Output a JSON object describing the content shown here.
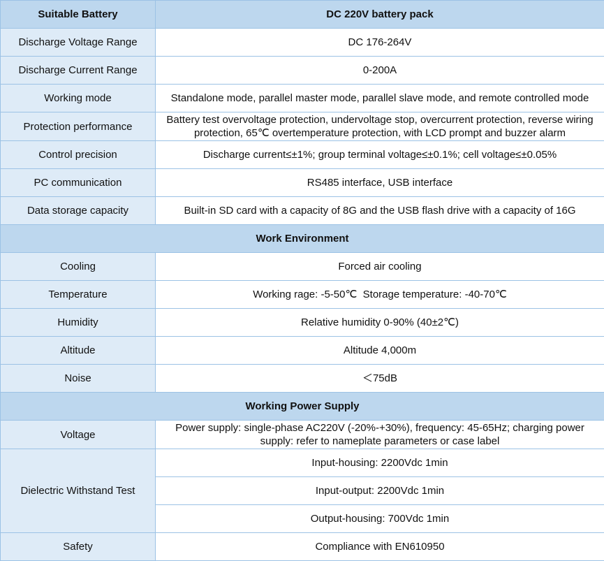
{
  "colors": {
    "section_bg": "#BDD7EE",
    "label_bg": "#DEEBF7",
    "value_bg": "#FFFFFF",
    "border": "#9CC2E5",
    "text": "#111111"
  },
  "header": {
    "label": "Suitable Battery",
    "value": "DC 220V battery pack"
  },
  "rows1": [
    {
      "label": "Discharge Voltage Range",
      "value": "DC 176-264V"
    },
    {
      "label": "Discharge Current Range",
      "value": "0-200A"
    },
    {
      "label": "Working mode",
      "value": "Standalone mode, parallel master mode, parallel slave mode, and remote controlled mode"
    },
    {
      "label": "Protection performance",
      "value": "Battery test overvoltage protection, undervoltage stop, overcurrent protection, reverse wiring protection, 65℃ overtemperature protection, with LCD prompt and buzzer alarm"
    },
    {
      "label": "Control precision",
      "value": "Discharge current≤±1%; group terminal voltage≤±0.1%; cell voltage≤±0.05%"
    },
    {
      "label": "PC communication",
      "value": "RS485 interface, USB interface"
    },
    {
      "label": "Data storage capacity",
      "value": "Built-in SD card with a capacity of 8G and the USB flash drive with a capacity of 16G"
    }
  ],
  "sections": {
    "work_environment": "Work Environment",
    "working_power_supply": "Working Power Supply"
  },
  "rows2": [
    {
      "label": "Cooling",
      "value": "Forced air cooling"
    },
    {
      "label": "Temperature",
      "value": "Working rage: -5-50℃  Storage temperature: -40-70℃"
    },
    {
      "label": "Humidity",
      "value": "Relative humidity 0-90% (40±2℃)"
    },
    {
      "label": "Altitude",
      "value": "Altitude 4,000m"
    },
    {
      "label": "Noise",
      "value": "＜75dB"
    }
  ],
  "voltage": {
    "label": "Voltage",
    "value": "Power supply: single-phase AC220V (-20%-+30%), frequency: 45-65Hz; charging power supply: refer to nameplate parameters or case label"
  },
  "dielectric": {
    "label": "Dielectric Withstand Test",
    "tests": [
      "Input-housing: 2200Vdc 1min",
      "Input-output: 2200Vdc 1min",
      "Output-housing: 700Vdc 1min"
    ]
  },
  "safety": {
    "label": "Safety",
    "value": "Compliance with EN610950"
  }
}
